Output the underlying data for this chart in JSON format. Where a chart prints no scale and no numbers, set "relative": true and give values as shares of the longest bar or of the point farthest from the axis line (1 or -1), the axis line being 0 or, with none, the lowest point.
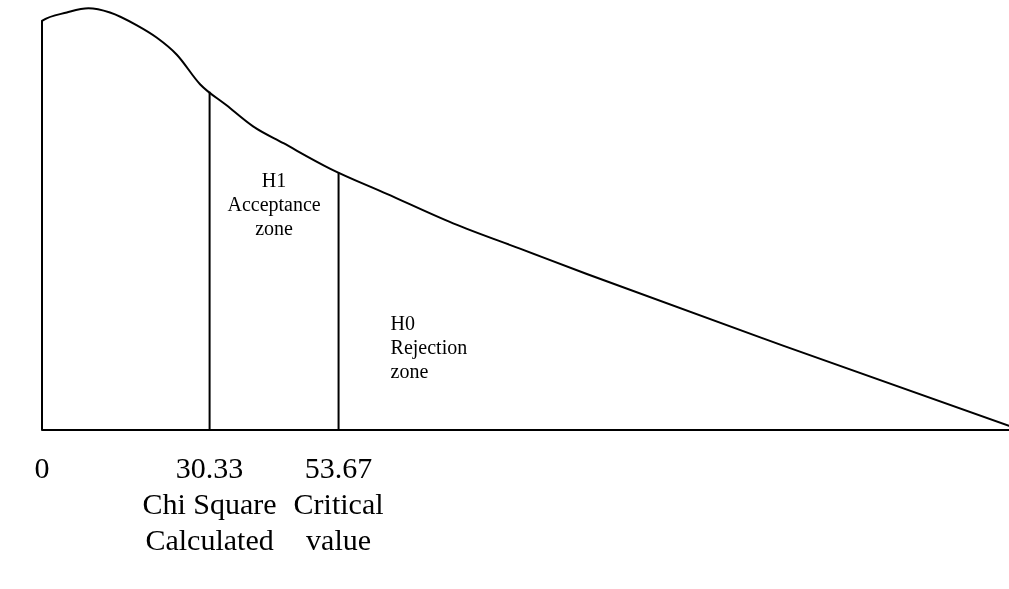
{
  "chart_data": {
    "type": "line",
    "relative": true,
    "x": [
      0,
      0,
      4.5,
      8.4,
      12.3,
      17.1,
      20.8,
      24.4,
      28.6,
      33.4,
      38.2,
      43.7,
      52.1,
      62.4,
      74.4,
      86.5,
      98.6,
      134.1,
      175
    ],
    "values": [
      0,
      0.97,
      0.99,
      1,
      0.99,
      0.96,
      0.93,
      0.89,
      0.82,
      0.77,
      0.72,
      0.68,
      0.62,
      0.56,
      0.49,
      0.43,
      0.37,
      0.2,
      0.01
    ],
    "color": "#000000",
    "xlim": [
      0,
      175
    ],
    "xticks": [
      0,
      30.33,
      53.67
    ],
    "ref_lines": [
      {
        "axis": "x",
        "value": 30.33,
        "label": "Chi Square Calculated",
        "color": "#000000"
      },
      {
        "axis": "x",
        "value": 53.67,
        "label": "Critical value",
        "color": "#000000"
      }
    ],
    "annotations": [
      "H1 Acceptance zone",
      "H0 Rejection zone"
    ]
  }
}
